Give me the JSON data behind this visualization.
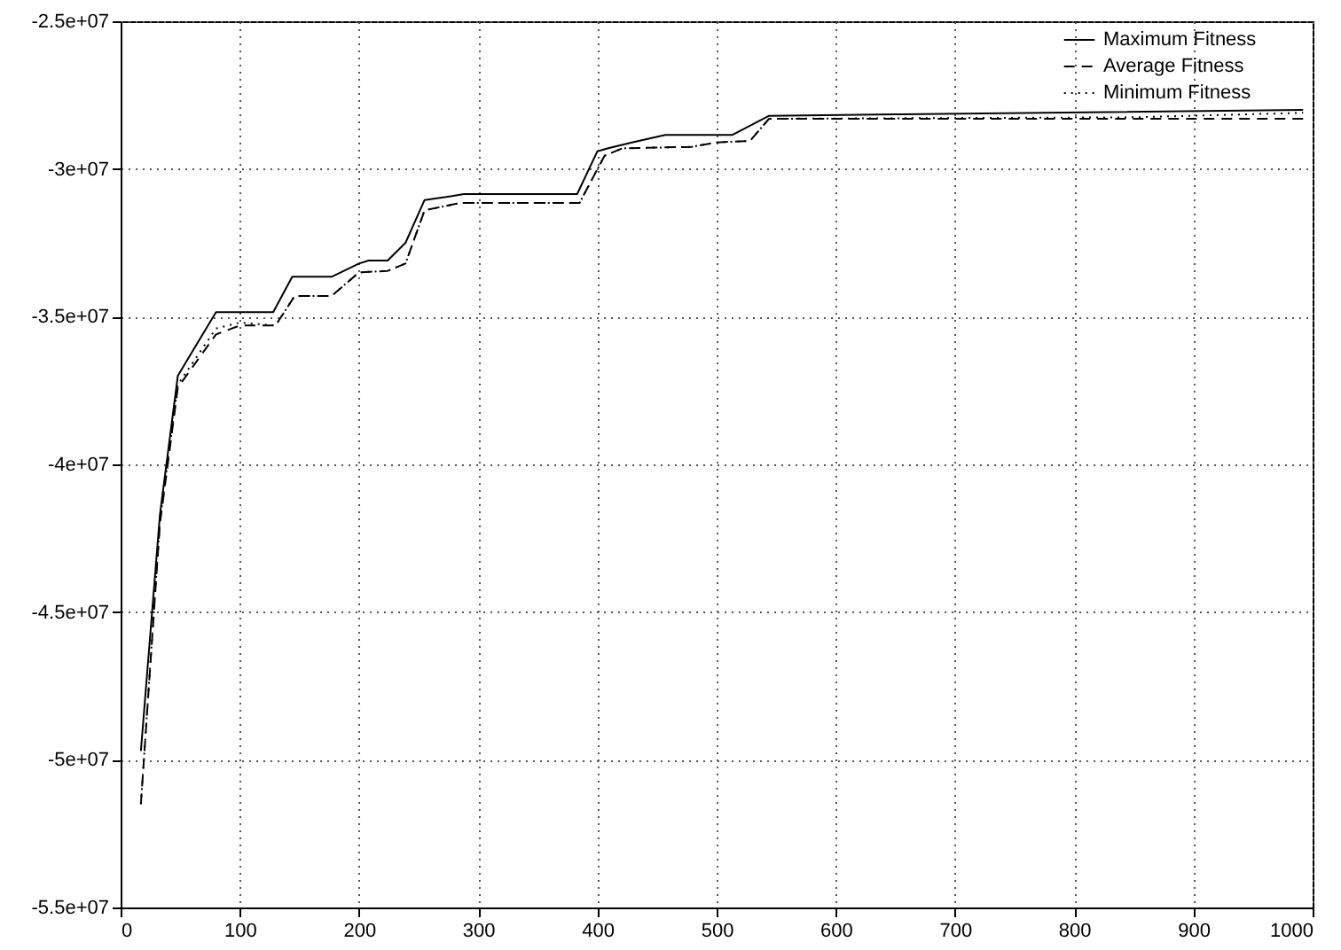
{
  "chart_data": {
    "type": "line",
    "xlim": [
      0,
      1000
    ],
    "xticks": [
      0,
      100,
      200,
      300,
      400,
      500,
      600,
      700,
      800,
      900,
      1000
    ],
    "ylim": [
      -55000000,
      -25000000
    ],
    "yticks": [
      {
        "value": -55000000,
        "label": "-5.5e+07"
      },
      {
        "value": -50000000,
        "label": "-5e+07"
      },
      {
        "value": -45000000,
        "label": "-4.5e+07"
      },
      {
        "value": -40000000,
        "label": "-4e+07"
      },
      {
        "value": -35000000,
        "label": "-3.5e+07"
      },
      {
        "value": -30000000,
        "label": "-3e+07"
      },
      {
        "value": -25000000,
        "label": "-2.5e+07"
      }
    ],
    "grid": true,
    "legend": "top right",
    "marker": "none",
    "series": [
      {
        "name": "Maximum Fitness",
        "color": "#000000",
        "line_style": "solid",
        "x": [
          17,
          33,
          48,
          80,
          128,
          144,
          177,
          200,
          208,
          224,
          239,
          255,
          273,
          288,
          383,
          400,
          409,
          429,
          457,
          513,
          544,
          649,
          992
        ],
        "values": [
          -49700000,
          -41700000,
          -37000000,
          -34850000,
          -34850000,
          -33650000,
          -33650000,
          -33200000,
          -33100000,
          -33100000,
          -32500000,
          -31050000,
          -30950000,
          -30850000,
          -30850000,
          -29400000,
          -29300000,
          -29100000,
          -28850000,
          -28850000,
          -28200000,
          -28150000,
          -28000000
        ]
      },
      {
        "name": "Average Fitness",
        "color": "#000000",
        "line_style": "dashed",
        "x": [
          17,
          33,
          48,
          80,
          100,
          130,
          146,
          177,
          200,
          224,
          239,
          255,
          285,
          385,
          406,
          421,
          479,
          500,
          528,
          544,
          992
        ],
        "values": [
          -51500000,
          -42000000,
          -37400000,
          -35600000,
          -35300000,
          -35300000,
          -34300000,
          -34300000,
          -33500000,
          -33450000,
          -33200000,
          -31400000,
          -31150000,
          -31150000,
          -29550000,
          -29300000,
          -29250000,
          -29100000,
          -29050000,
          -28300000,
          -28300000
        ]
      },
      {
        "name": "Minimum Fitness",
        "color": "#000000",
        "line_style": "dotted",
        "x": [
          17,
          33,
          48,
          80,
          100,
          130,
          146,
          177,
          200,
          224,
          239,
          255,
          285,
          385,
          406,
          421,
          479,
          500,
          528,
          544,
          850,
          992
        ],
        "values": [
          -51500000,
          -41900000,
          -37300000,
          -35400000,
          -35200000,
          -35300000,
          -34300000,
          -34300000,
          -33500000,
          -33450000,
          -33200000,
          -31400000,
          -31150000,
          -31150000,
          -29550000,
          -29300000,
          -29250000,
          -29100000,
          -29050000,
          -28300000,
          -28250000,
          -28100000
        ]
      }
    ]
  }
}
